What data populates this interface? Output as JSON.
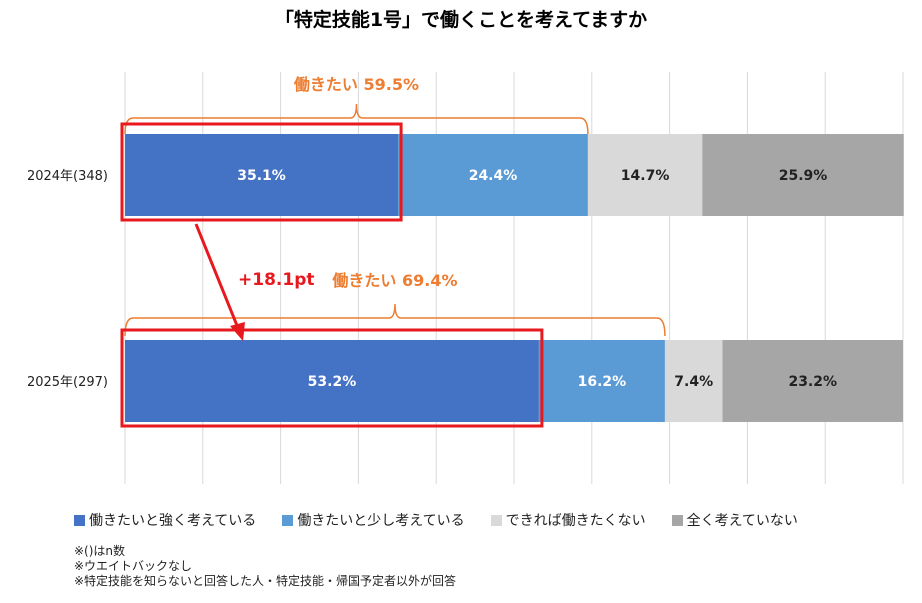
{
  "chart_data": {
    "type": "bar",
    "orientation": "horizontal-stacked-100",
    "title": "「特定技能1号」で働くことを考えてますか",
    "categories": [
      "2024年(348)",
      "2025年(297)"
    ],
    "series": [
      {
        "name": "働きたいと強く考えている",
        "color": "#4472C4",
        "values": [
          35.1,
          53.2
        ],
        "labels": [
          "35.1%",
          "53.2%"
        ]
      },
      {
        "name": "働きたいと少し考えている",
        "color": "#5B9BD5",
        "values": [
          24.4,
          16.2
        ],
        "labels": [
          "24.4%",
          "16.2%"
        ]
      },
      {
        "name": "できれば働きたくない",
        "color": "#D9D9D9",
        "values": [
          14.7,
          7.4
        ],
        "labels": [
          "14.7%",
          "7.4%"
        ]
      },
      {
        "name": "全く考えていない",
        "color": "#A6A6A6",
        "values": [
          25.9,
          23.2
        ],
        "labels": [
          "25.9%",
          "23.2%"
        ]
      }
    ],
    "xlim": [
      0,
      100
    ],
    "grid": true,
    "legend_position": "bottom",
    "annotations": {
      "brackets": [
        "働きたい 59.5%",
        "働きたい 69.4%"
      ],
      "bracket_values": [
        59.5,
        69.4
      ],
      "change_label": "+18.1pt",
      "accent_color": "#ED7D31",
      "highlight_color": "#E8191E"
    }
  },
  "notes": [
    "※()はn数",
    "※ウエイトバックなし",
    "※特定技能を知らないと回答した人・特定技能・帰国予定者以外が回答"
  ]
}
